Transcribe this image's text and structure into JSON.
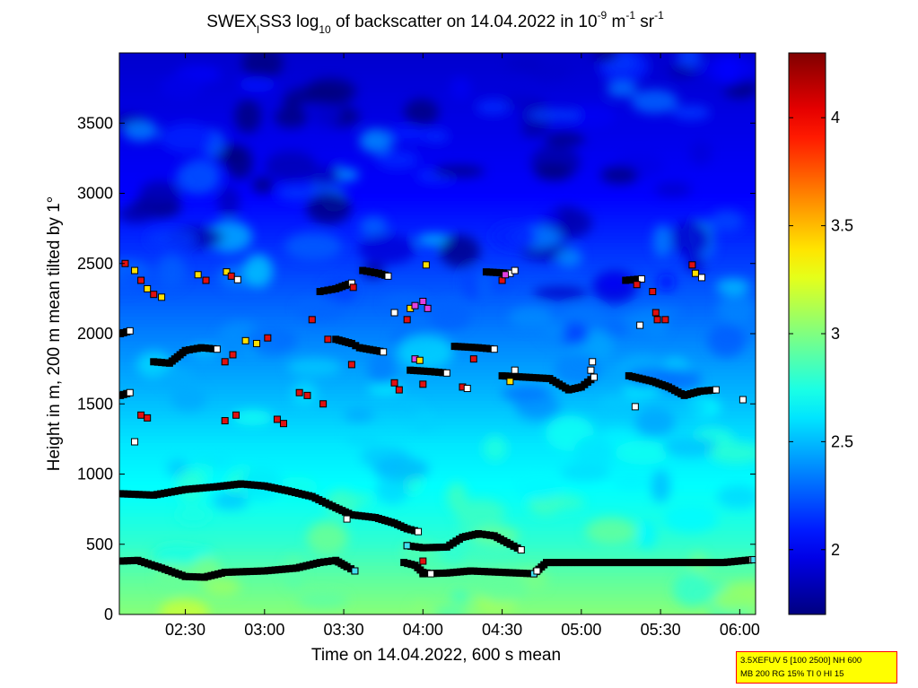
{
  "title": {
    "prefix": "SWEX",
    "sub1": "l",
    "mid": "SS3 log",
    "sub2": "10",
    "rest": " of backscatter on 14.04.2022 in 10",
    "sup1": "-9",
    "unit1": " m",
    "sup2": "-1",
    "unit2": " sr",
    "sup3": "-1"
  },
  "footer_box": {
    "line1": "3.5XEFUV 5 [100 2500] NH 600",
    "line2": "MB 200 RG 15% TI 0 HI 15"
  },
  "colors": {
    "marker_outline": "#000000",
    "marker_black": "#000000",
    "marker_white": "#ffffff",
    "marker_red": "#e01010",
    "marker_yellow": "#ffe000",
    "marker_magenta": "#e040e0"
  },
  "chart_data": {
    "type": "heatmap",
    "xlabel": "Time on 14.04.2022, 600 s mean",
    "ylabel": "Height in m, 200 m mean tilted by 1°",
    "xlim": [
      2.0833,
      6.1
    ],
    "ylim": [
      0,
      4000
    ],
    "x_ticks": [
      {
        "value": 2.5,
        "label": "02:30"
      },
      {
        "value": 3.0,
        "label": "03:00"
      },
      {
        "value": 3.5,
        "label": "03:30"
      },
      {
        "value": 4.0,
        "label": "04:00"
      },
      {
        "value": 4.5,
        "label": "04:30"
      },
      {
        "value": 5.0,
        "label": "05:00"
      },
      {
        "value": 5.5,
        "label": "05:30"
      },
      {
        "value": 6.0,
        "label": "06:00"
      }
    ],
    "y_ticks": [
      {
        "value": 0,
        "label": "0"
      },
      {
        "value": 500,
        "label": "500"
      },
      {
        "value": 1000,
        "label": "1000"
      },
      {
        "value": 1500,
        "label": "1500"
      },
      {
        "value": 2000,
        "label": "2000"
      },
      {
        "value": 2500,
        "label": "2500"
      },
      {
        "value": 3000,
        "label": "3000"
      },
      {
        "value": 3500,
        "label": "3500"
      }
    ],
    "colorbar": {
      "range": [
        1.7,
        4.3
      ],
      "ticks": [
        {
          "value": 2,
          "label": "2"
        },
        {
          "value": 2.5,
          "label": "2.5"
        },
        {
          "value": 3,
          "label": "3"
        },
        {
          "value": 3.5,
          "label": "3.5"
        },
        {
          "value": 4,
          "label": "4"
        }
      ]
    },
    "vertical_profile": [
      {
        "height": 0,
        "value": 3.02
      },
      {
        "height": 250,
        "value": 2.92
      },
      {
        "height": 500,
        "value": 2.8
      },
      {
        "height": 800,
        "value": 2.7
      },
      {
        "height": 1200,
        "value": 2.62
      },
      {
        "height": 1600,
        "value": 2.48
      },
      {
        "height": 2000,
        "value": 2.35
      },
      {
        "height": 2500,
        "value": 2.18
      },
      {
        "height": 3000,
        "value": 2.02
      },
      {
        "height": 4000,
        "value": 1.9
      }
    ],
    "layer_series": [
      {
        "points": [
          [
            2.09,
            380
          ],
          [
            2.2,
            385
          ],
          [
            2.35,
            330
          ],
          [
            2.5,
            270
          ],
          [
            2.62,
            265
          ],
          [
            2.75,
            300
          ],
          [
            3.0,
            310
          ],
          [
            3.2,
            330
          ],
          [
            3.35,
            370
          ],
          [
            3.45,
            385
          ],
          [
            3.52,
            340
          ],
          [
            3.57,
            310
          ]
        ]
      },
      {
        "points": [
          [
            4.0,
            290
          ],
          [
            4.15,
            295
          ],
          [
            4.3,
            310
          ],
          [
            4.5,
            300
          ],
          [
            4.7,
            290
          ],
          [
            4.78,
            370
          ],
          [
            5.0,
            370
          ],
          [
            5.5,
            370
          ],
          [
            5.9,
            370
          ],
          [
            6.08,
            390
          ]
        ]
      },
      {
        "points": [
          [
            3.88,
            370
          ],
          [
            3.95,
            350
          ],
          [
            4.0,
            300
          ],
          [
            4.05,
            290
          ]
        ]
      },
      {
        "points": [
          [
            2.09,
            860
          ],
          [
            2.3,
            850
          ],
          [
            2.5,
            890
          ],
          [
            2.7,
            910
          ],
          [
            2.85,
            930
          ],
          [
            3.0,
            915
          ],
          [
            3.15,
            880
          ],
          [
            3.3,
            840
          ],
          [
            3.45,
            760
          ],
          [
            3.55,
            710
          ],
          [
            3.7,
            690
          ],
          [
            3.82,
            650
          ],
          [
            3.9,
            610
          ],
          [
            3.97,
            590
          ]
        ]
      },
      {
        "points": [
          [
            3.9,
            490
          ],
          [
            4.0,
            475
          ],
          [
            4.15,
            480
          ],
          [
            4.25,
            550
          ],
          [
            4.35,
            575
          ],
          [
            4.45,
            560
          ],
          [
            4.55,
            500
          ],
          [
            4.62,
            460
          ]
        ]
      },
      {
        "points": [
          [
            2.09,
            2000
          ],
          [
            2.15,
            2020
          ]
        ]
      },
      {
        "points": [
          [
            2.3,
            1800
          ],
          [
            2.4,
            1790
          ],
          [
            2.5,
            1880
          ],
          [
            2.6,
            1900
          ],
          [
            2.7,
            1890
          ]
        ]
      },
      {
        "points": [
          [
            3.45,
            1960
          ],
          [
            3.55,
            1930
          ],
          [
            3.6,
            1900
          ],
          [
            3.75,
            1870
          ]
        ]
      },
      {
        "points": [
          [
            4.2,
            1910
          ],
          [
            4.35,
            1900
          ],
          [
            4.45,
            1890
          ]
        ]
      },
      {
        "points": [
          [
            3.92,
            1740
          ],
          [
            4.05,
            1730
          ],
          [
            4.15,
            1720
          ]
        ]
      },
      {
        "points": [
          [
            4.5,
            1700
          ],
          [
            4.65,
            1690
          ],
          [
            4.8,
            1680
          ],
          [
            4.92,
            1600
          ],
          [
            5.0,
            1620
          ],
          [
            5.08,
            1690
          ]
        ]
      },
      {
        "points": [
          [
            5.3,
            1700
          ],
          [
            5.45,
            1660
          ],
          [
            5.55,
            1620
          ],
          [
            5.65,
            1560
          ],
          [
            5.75,
            1590
          ],
          [
            5.85,
            1600
          ]
        ]
      },
      {
        "points": [
          [
            4.4,
            2440
          ],
          [
            4.55,
            2430
          ]
        ]
      },
      {
        "points": [
          [
            3.62,
            2450
          ],
          [
            3.72,
            2430
          ],
          [
            3.78,
            2410
          ]
        ]
      },
      {
        "points": [
          [
            3.35,
            2300
          ],
          [
            3.45,
            2320
          ],
          [
            3.55,
            2360
          ]
        ]
      },
      {
        "points": [
          [
            2.09,
            1560
          ],
          [
            2.15,
            1580
          ]
        ]
      },
      {
        "points": [
          [
            5.28,
            2380
          ],
          [
            5.38,
            2390
          ]
        ]
      }
    ],
    "extra_markers": [
      {
        "t": 2.12,
        "h": 2500,
        "c": "red"
      },
      {
        "t": 2.18,
        "h": 2450,
        "c": "yellow"
      },
      {
        "t": 2.22,
        "h": 2380,
        "c": "red"
      },
      {
        "t": 2.26,
        "h": 2320,
        "c": "yellow"
      },
      {
        "t": 2.3,
        "h": 2280,
        "c": "red"
      },
      {
        "t": 2.35,
        "h": 2260,
        "c": "yellow"
      },
      {
        "t": 2.58,
        "h": 2420,
        "c": "yellow"
      },
      {
        "t": 2.63,
        "h": 2380,
        "c": "red"
      },
      {
        "t": 2.76,
        "h": 2440,
        "c": "yellow"
      },
      {
        "t": 2.79,
        "h": 2410,
        "c": "red"
      },
      {
        "t": 2.83,
        "h": 2385,
        "c": "white"
      },
      {
        "t": 2.22,
        "h": 1420,
        "c": "red"
      },
      {
        "t": 2.26,
        "h": 1400,
        "c": "red"
      },
      {
        "t": 2.75,
        "h": 1380,
        "c": "red"
      },
      {
        "t": 2.82,
        "h": 1420,
        "c": "red"
      },
      {
        "t": 3.08,
        "h": 1390,
        "c": "red"
      },
      {
        "t": 3.12,
        "h": 1360,
        "c": "red"
      },
      {
        "t": 2.18,
        "h": 1230,
        "c": "white"
      },
      {
        "t": 2.75,
        "h": 1800,
        "c": "red"
      },
      {
        "t": 2.8,
        "h": 1850,
        "c": "red"
      },
      {
        "t": 2.88,
        "h": 1950,
        "c": "yellow"
      },
      {
        "t": 2.95,
        "h": 1930,
        "c": "yellow"
      },
      {
        "t": 3.02,
        "h": 1970,
        "c": "red"
      },
      {
        "t": 3.22,
        "h": 1580,
        "c": "red"
      },
      {
        "t": 3.27,
        "h": 1560,
        "c": "red"
      },
      {
        "t": 3.37,
        "h": 1500,
        "c": "red"
      },
      {
        "t": 3.3,
        "h": 2100,
        "c": "red"
      },
      {
        "t": 3.4,
        "h": 1960,
        "c": "red"
      },
      {
        "t": 3.56,
        "h": 2330,
        "c": "red"
      },
      {
        "t": 3.55,
        "h": 1780,
        "c": "red"
      },
      {
        "t": 3.82,
        "h": 2150,
        "c": "white"
      },
      {
        "t": 3.92,
        "h": 2180,
        "c": "yellow"
      },
      {
        "t": 3.95,
        "h": 2200,
        "c": "magenta"
      },
      {
        "t": 4.0,
        "h": 2230,
        "c": "magenta"
      },
      {
        "t": 4.03,
        "h": 2180,
        "c": "magenta"
      },
      {
        "t": 3.9,
        "h": 2100,
        "c": "red"
      },
      {
        "t": 4.02,
        "h": 2490,
        "c": "yellow"
      },
      {
        "t": 3.82,
        "h": 1650,
        "c": "red"
      },
      {
        "t": 3.85,
        "h": 1600,
        "c": "red"
      },
      {
        "t": 3.95,
        "h": 1820,
        "c": "magenta"
      },
      {
        "t": 3.98,
        "h": 1810,
        "c": "yellow"
      },
      {
        "t": 4.0,
        "h": 1640,
        "c": "red"
      },
      {
        "t": 4.25,
        "h": 1620,
        "c": "red"
      },
      {
        "t": 4.28,
        "h": 1610,
        "c": "white"
      },
      {
        "t": 4.32,
        "h": 1820,
        "c": "red"
      },
      {
        "t": 4.5,
        "h": 2380,
        "c": "red"
      },
      {
        "t": 4.52,
        "h": 2420,
        "c": "magenta"
      },
      {
        "t": 4.58,
        "h": 2450,
        "c": "white"
      },
      {
        "t": 4.58,
        "h": 1740,
        "c": "white"
      },
      {
        "t": 4.55,
        "h": 1660,
        "c": "yellow"
      },
      {
        "t": 5.06,
        "h": 1740,
        "c": "white"
      },
      {
        "t": 5.07,
        "h": 1800,
        "c": "white"
      },
      {
        "t": 5.35,
        "h": 2350,
        "c": "red"
      },
      {
        "t": 5.37,
        "h": 2060,
        "c": "white"
      },
      {
        "t": 5.45,
        "h": 2300,
        "c": "red"
      },
      {
        "t": 5.47,
        "h": 2150,
        "c": "red"
      },
      {
        "t": 5.48,
        "h": 2100,
        "c": "red"
      },
      {
        "t": 5.53,
        "h": 2100,
        "c": "red"
      },
      {
        "t": 5.7,
        "h": 2490,
        "c": "red"
      },
      {
        "t": 5.72,
        "h": 2430,
        "c": "yellow"
      },
      {
        "t": 5.76,
        "h": 2400,
        "c": "white"
      },
      {
        "t": 5.34,
        "h": 1480,
        "c": "white"
      },
      {
        "t": 6.02,
        "h": 1530,
        "c": "white"
      },
      {
        "t": 6.09,
        "h": 390,
        "c": "cyan"
      },
      {
        "t": 3.57,
        "h": 310,
        "c": "cyan"
      },
      {
        "t": 3.52,
        "h": 680,
        "c": "white"
      },
      {
        "t": 3.9,
        "h": 490,
        "c": "cyan"
      },
      {
        "t": 4.0,
        "h": 380,
        "c": "red"
      },
      {
        "t": 4.62,
        "h": 460,
        "c": "white"
      },
      {
        "t": 4.7,
        "h": 290,
        "c": "cyan"
      },
      {
        "t": 4.72,
        "h": 310,
        "c": "white"
      }
    ]
  }
}
